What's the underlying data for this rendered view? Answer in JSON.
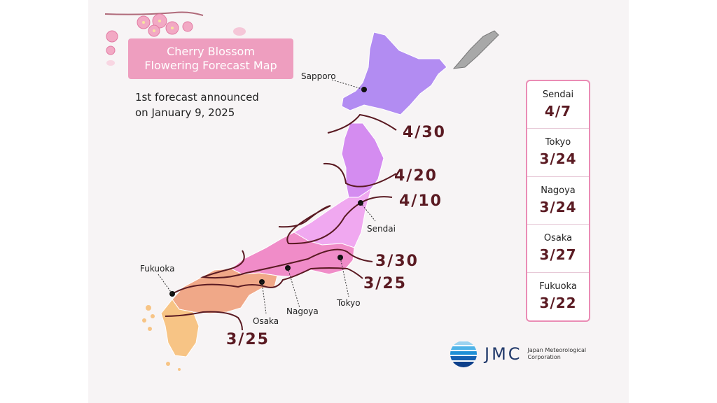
{
  "title_line1": "Cherry Blossom",
  "title_line2": "Flowering Forecast Map",
  "subtitle_line1": "1st forecast announced",
  "subtitle_line2": "on January 9, 2025",
  "cities": {
    "sapporo": "Sapporo",
    "sendai": "Sendai",
    "tokyo": "Tokyo",
    "nagoya": "Nagoya",
    "osaka": "Osaka",
    "fukuoka": "Fukuoka"
  },
  "isolines": {
    "l430": "4/30",
    "l420": "4/20",
    "l410": "4/10",
    "l330": "3/30",
    "l325_east": "3/25",
    "l325_west": "3/25"
  },
  "legend": [
    {
      "city": "Sendai",
      "date": "4/7"
    },
    {
      "city": "Tokyo",
      "date": "3/24"
    },
    {
      "city": "Nagoya",
      "date": "3/24"
    },
    {
      "city": "Osaka",
      "date": "3/27"
    },
    {
      "city": "Fukuoka",
      "date": "3/22"
    }
  ],
  "logo": {
    "abbr": "JMC",
    "name_line1": "Japan Meteorological",
    "name_line2": "Corporation"
  },
  "colors": {
    "hokkaido": "#b28cf2",
    "tohoku_north": "#d48cf0",
    "tohoku_south": "#f0a8f0",
    "kanto": "#f08cc8",
    "kinki": "#f0a888",
    "kyushu": "#f7c485",
    "title_box": "#ee9ebf",
    "date_text": "#5a1a22"
  }
}
